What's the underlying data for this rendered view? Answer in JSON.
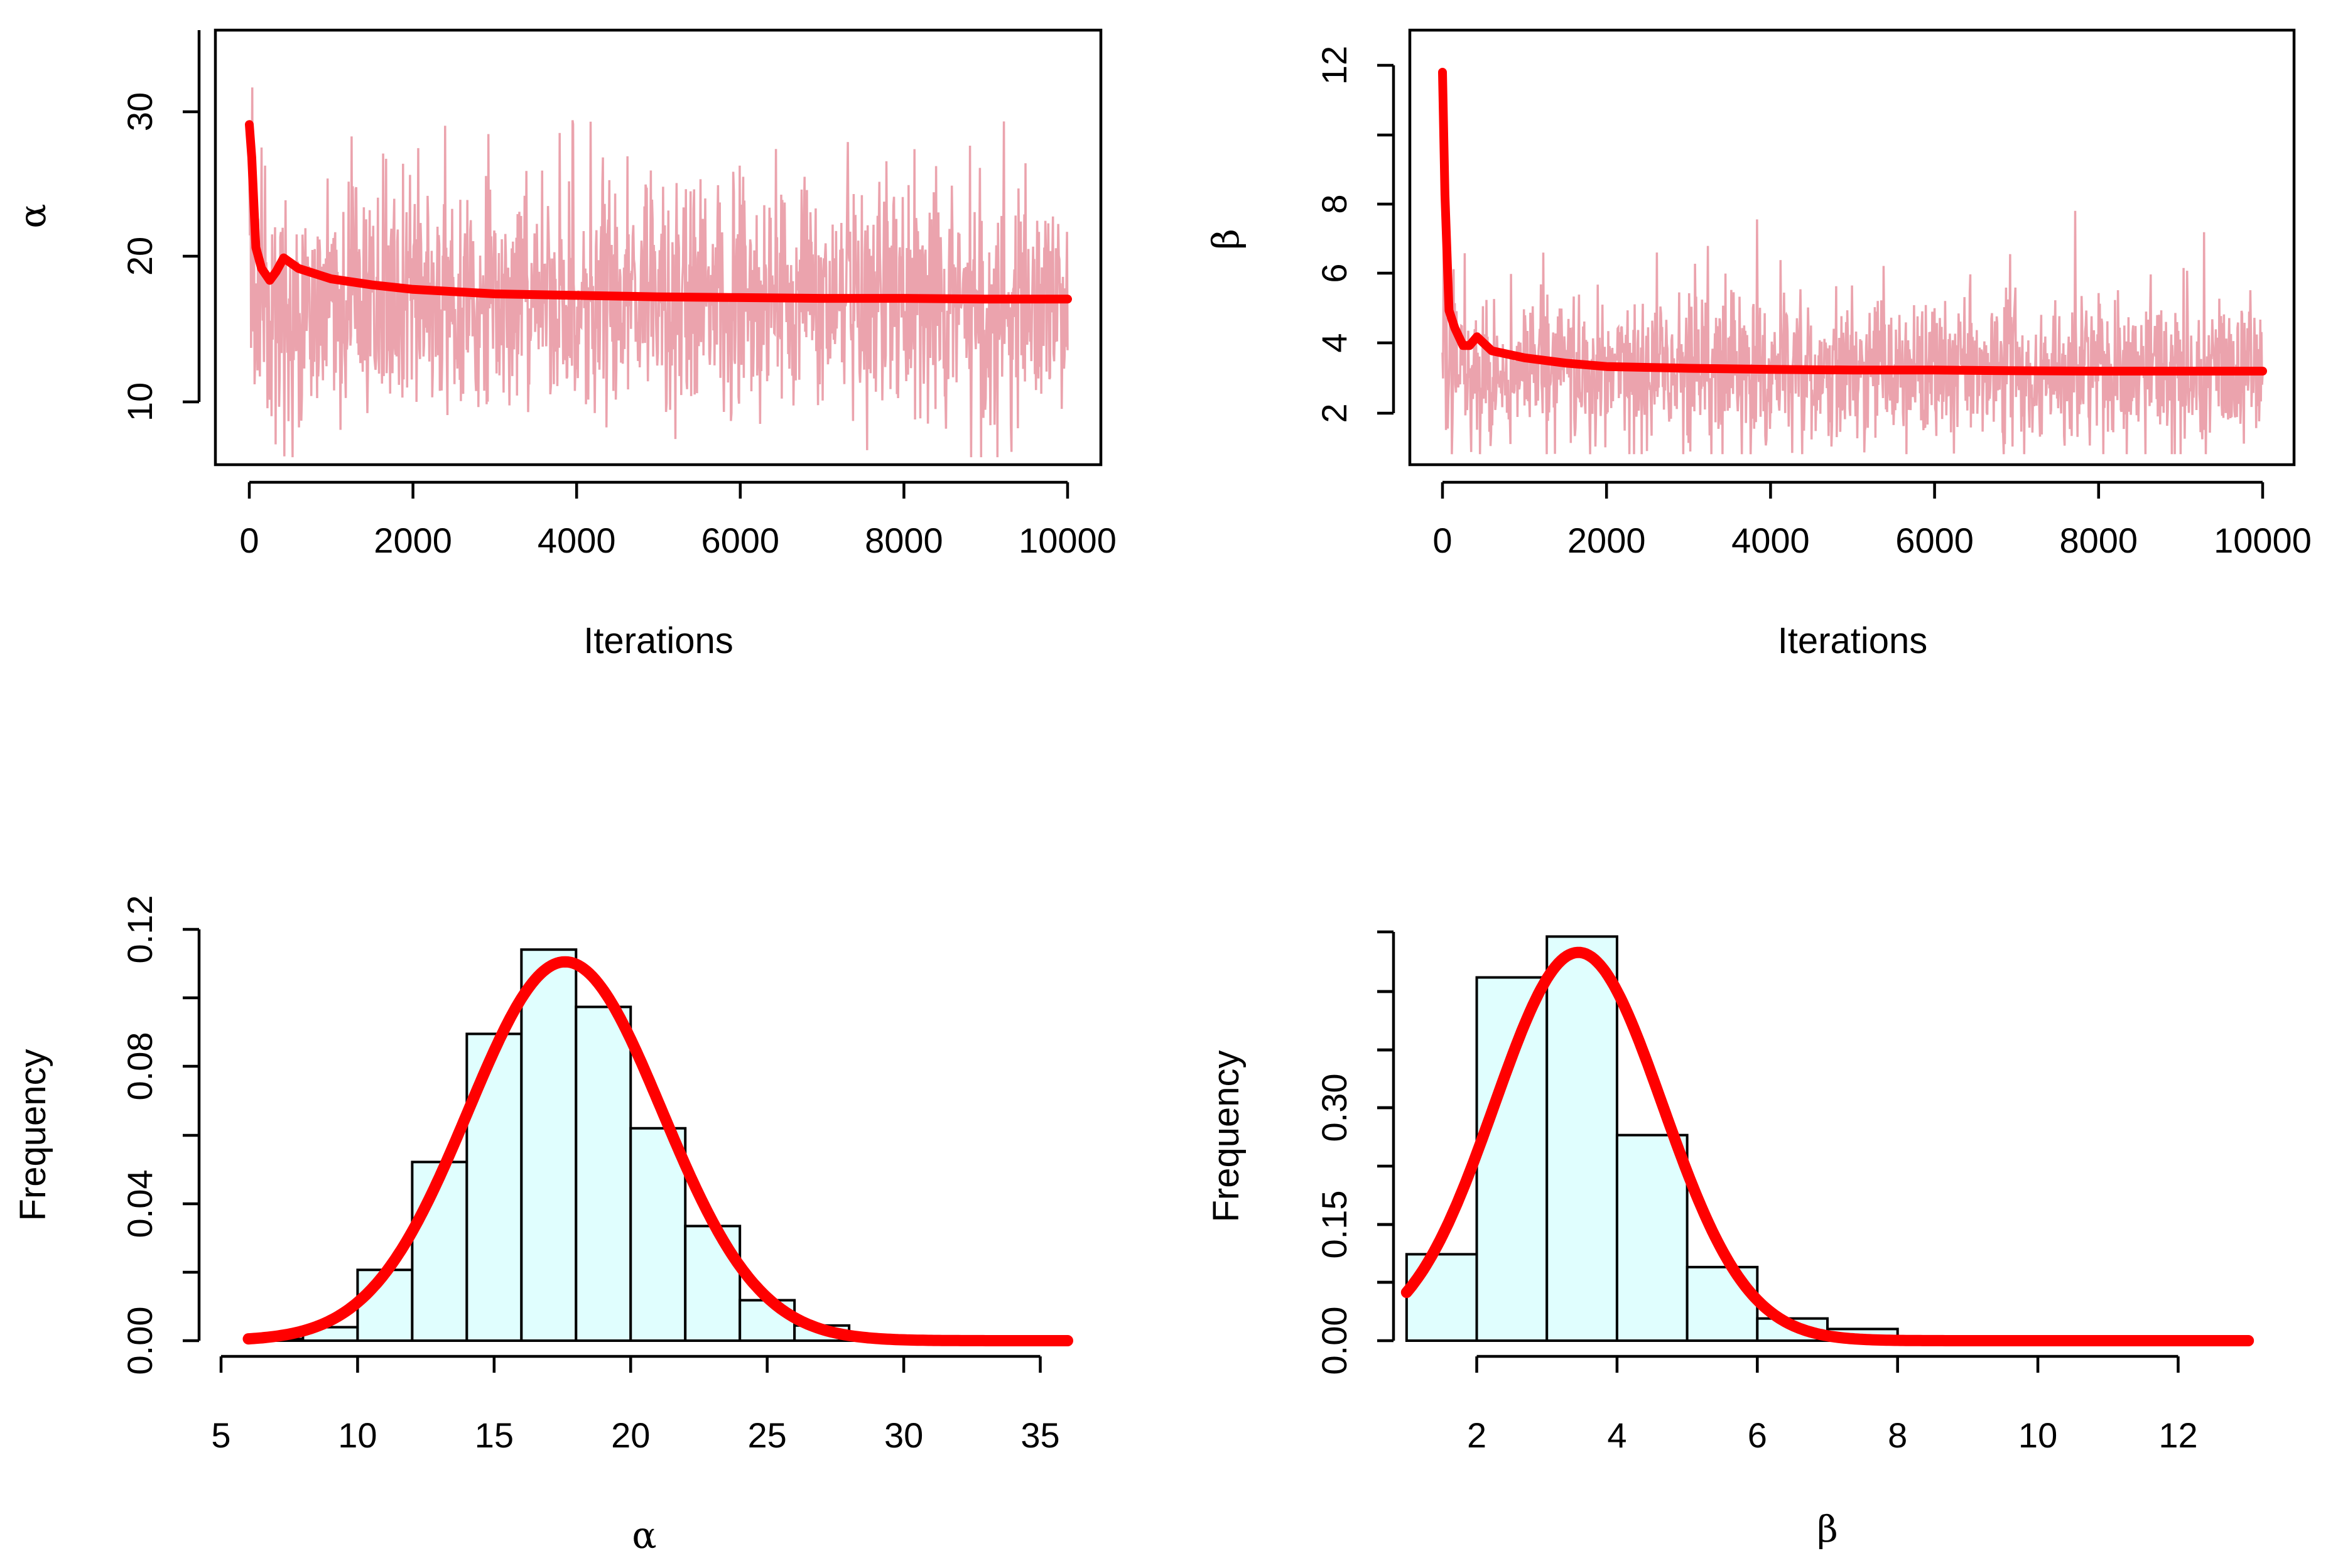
{
  "colors": {
    "trace": "#eba3ad",
    "mean_line": "#ff0000",
    "bar_fill": "#e0fefe",
    "bar_stroke": "#000000",
    "density": "#ff0000"
  },
  "chart_data": [
    {
      "id": "trace_alpha",
      "type": "line",
      "xlabel": "Iterations",
      "ylabel": "α",
      "xlim": [
        0,
        10000
      ],
      "ylim": [
        6.5,
        35.5
      ],
      "xticks": [
        "0",
        "2000",
        "4000",
        "6000",
        "8000",
        "10000"
      ],
      "yticks": [
        "10",
        "20",
        "30"
      ],
      "series": [
        {
          "role": "trace",
          "x": [
            0,
            10000
          ],
          "mean": 17.5,
          "spread": 4.2,
          "min": 7,
          "max": 34.4,
          "seed": 11
        },
        {
          "role": "running_mean",
          "x": [
            0,
            30,
            80,
            150,
            250,
            330,
            420,
            600,
            1000,
            1500,
            2000,
            3000,
            4000,
            5000,
            6000,
            7000,
            8000,
            9000,
            10000
          ],
          "y": [
            29.2,
            27.0,
            21.0,
            19.6,
            18.8,
            19.4,
            20.3,
            19.6,
            18.9,
            18.5,
            18.2,
            17.9,
            17.8,
            17.7,
            17.65,
            17.6,
            17.6,
            17.55,
            17.55
          ]
        }
      ]
    },
    {
      "id": "trace_beta",
      "type": "line",
      "xlabel": "Iterations",
      "ylabel": "β",
      "xlim": [
        0,
        10000
      ],
      "ylim": [
        0.8,
        13.2
      ],
      "xticks": [
        "0",
        "2000",
        "4000",
        "6000",
        "8000",
        "10000"
      ],
      "yticks": [
        "2",
        "4",
        "6",
        "8",
        "",
        "12"
      ],
      "series": [
        {
          "role": "trace",
          "x": [
            0,
            10000
          ],
          "mean": 3.5,
          "spread": 1.2,
          "min": 1.1,
          "max": 12.5,
          "seed": 29
        },
        {
          "role": "running_mean",
          "x": [
            0,
            30,
            80,
            150,
            250,
            330,
            420,
            600,
            1000,
            1500,
            2000,
            3000,
            4000,
            5000,
            6000,
            7000,
            8000,
            9000,
            10000
          ],
          "y": [
            12.0,
            8.5,
            5.2,
            4.7,
            4.2,
            4.2,
            4.45,
            4.05,
            3.85,
            3.7,
            3.6,
            3.55,
            3.52,
            3.5,
            3.5,
            3.48,
            3.47,
            3.47,
            3.47
          ]
        }
      ]
    },
    {
      "id": "hist_alpha",
      "type": "bar",
      "xlabel": "α",
      "ylabel": "Frequency",
      "xlim": [
        5,
        36
      ],
      "ylim": [
        0,
        0.122
      ],
      "xticks": [
        "5",
        "10",
        "15",
        "20",
        "25",
        "30",
        "35"
      ],
      "yticks": [
        "0.00",
        "0.04",
        "0.08",
        "0.12"
      ],
      "bins": [
        [
          6,
          8
        ],
        [
          8,
          10
        ],
        [
          10,
          12
        ],
        [
          12,
          14
        ],
        [
          14,
          16
        ],
        [
          16,
          18
        ],
        [
          18,
          20
        ],
        [
          20,
          22
        ],
        [
          22,
          24
        ],
        [
          24,
          26
        ],
        [
          26,
          28
        ],
        [
          28,
          30
        ],
        [
          30,
          32
        ],
        [
          32,
          34
        ],
        [
          34,
          36
        ]
      ],
      "values": [
        0.0005,
        0.004,
        0.021,
        0.053,
        0.091,
        0.116,
        0.099,
        0.063,
        0.034,
        0.012,
        0.0045,
        0.0015,
        0.0004,
        0.0001,
        5e-05
      ],
      "density": {
        "dist": "normal",
        "mean": 17.6,
        "sd": 3.55,
        "x_range": [
          6,
          36
        ]
      }
    },
    {
      "id": "hist_beta",
      "type": "bar",
      "xlabel": "β",
      "ylabel": "Frequency",
      "xlim": [
        0.5,
        13.5
      ],
      "ylim": [
        0,
        0.35
      ],
      "xticks": [
        "2",
        "4",
        "6",
        "8",
        "10",
        "12"
      ],
      "yticks": [
        "0.00",
        "",
        "0.15",
        "",
        "0.30"
      ],
      "bins": [
        [
          1,
          2
        ],
        [
          2,
          3
        ],
        [
          3,
          4
        ],
        [
          4,
          5
        ],
        [
          5,
          6
        ],
        [
          6,
          7
        ],
        [
          7,
          8
        ],
        [
          8,
          9
        ],
        [
          9,
          10
        ],
        [
          10,
          11
        ],
        [
          11,
          12
        ],
        [
          12,
          13
        ]
      ],
      "values": [
        0.074,
        0.311,
        0.346,
        0.176,
        0.063,
        0.019,
        0.01,
        0.002,
        0.0008,
        0.0003,
        0.0001,
        5e-05
      ],
      "density": {
        "dist": "normal",
        "mean": 3.45,
        "sd": 1.2,
        "x_range": [
          1,
          13
        ]
      }
    }
  ]
}
